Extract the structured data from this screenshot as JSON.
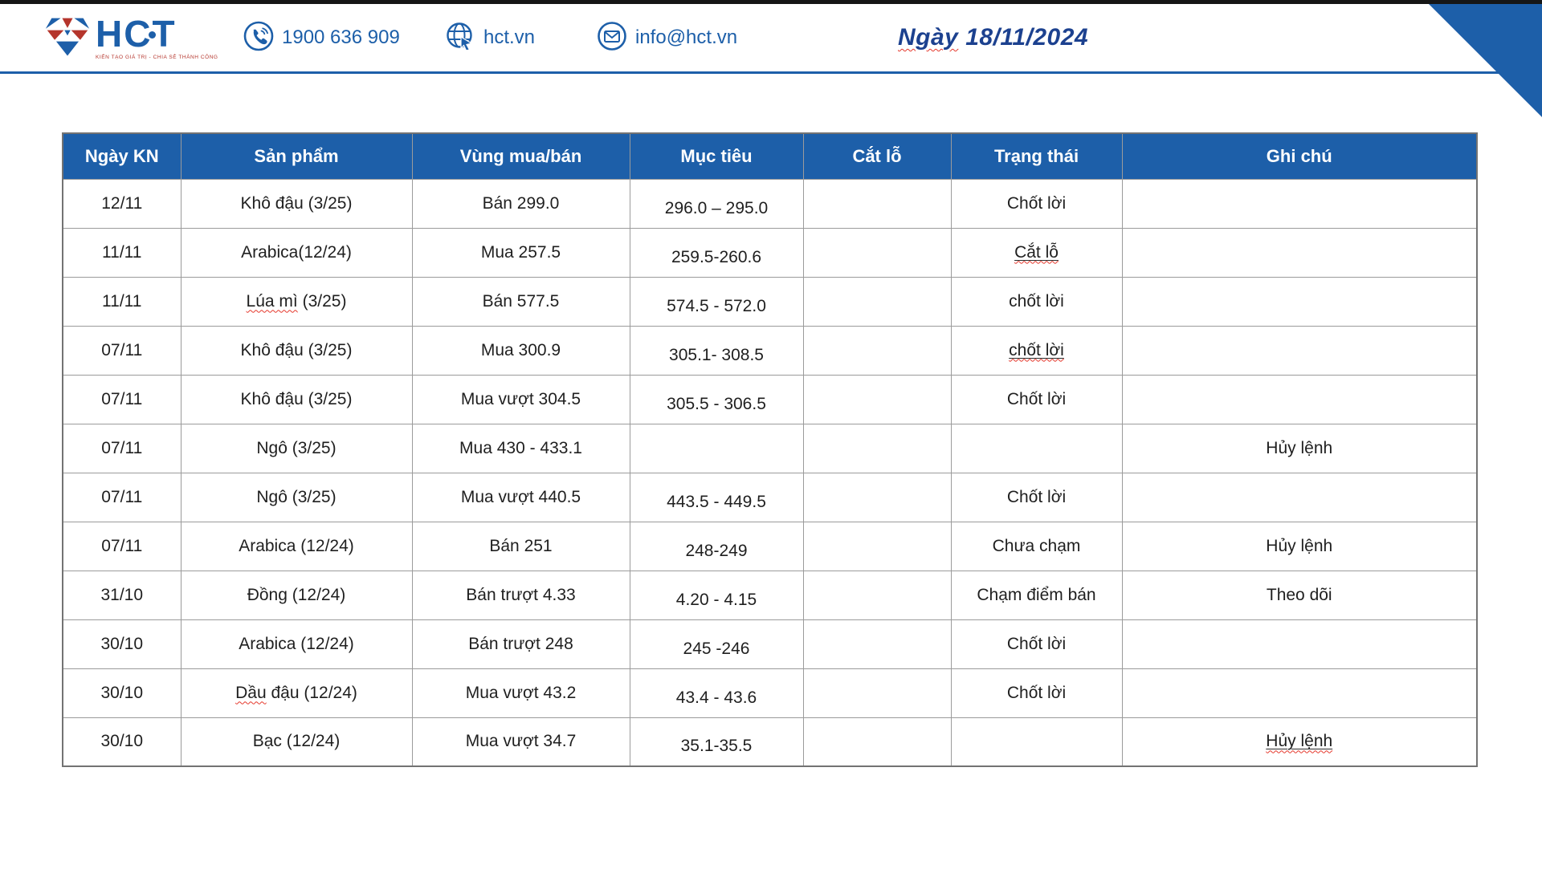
{
  "header": {
    "logo_word": "HCT",
    "logo_tagline": "KIẾN TẠO GIÁ TRỊ - CHIA SẺ THÀNH CÔNG",
    "phone": "1900 636 909",
    "website": "hct.vn",
    "email": "info@hct.vn",
    "date_word": "Ngày",
    "date_rest": " 18/11/2024"
  },
  "colors": {
    "brand_blue": "#1d5fa9",
    "date_navy": "#1c418f",
    "logo_red": "#b5352c",
    "spellcheck_red": "#e5372b",
    "table_border": "#9b9b9b"
  },
  "table": {
    "columns": [
      "Ngày KN",
      "Sản phẩm",
      "Vùng mua/bán",
      "Mục tiêu",
      "Cắt lỗ",
      "Trạng thái",
      "Ghi chú"
    ],
    "rows": [
      {
        "ngay_kn": "12/11",
        "san_pham": "Khô đậu (3/25)",
        "vung_mua_ban": "Bán 299.0",
        "muc_tieu": "296.0 – 295.0",
        "cat_lo": "",
        "trang_thai": "Chốt lời",
        "ghi_chu": ""
      },
      {
        "ngay_kn": "11/11",
        "san_pham": "Arabica(12/24)",
        "vung_mua_ban": "Mua 257.5",
        "muc_tieu": "259.5-260.6",
        "cat_lo": "",
        "trang_thai": "Cắt lỗ",
        "trang_thai_decor": "underline-wavy",
        "ghi_chu": ""
      },
      {
        "ngay_kn": "11/11",
        "san_pham": "Lúa mì (3/25)",
        "san_pham_wavy": "Lúa mì",
        "vung_mua_ban": "Bán 577.5",
        "muc_tieu": "574.5 - 572.0",
        "cat_lo": "",
        "trang_thai": "chốt lời",
        "ghi_chu": ""
      },
      {
        "ngay_kn": "07/11",
        "san_pham": "Khô đậu (3/25)",
        "vung_mua_ban": "Mua 300.9",
        "muc_tieu": "305.1- 308.5",
        "cat_lo": "",
        "trang_thai": "chốt lời",
        "trang_thai_decor": "underline-wavy",
        "ghi_chu": ""
      },
      {
        "ngay_kn": "07/11",
        "san_pham": "Khô đậu (3/25)",
        "vung_mua_ban": "Mua vượt 304.5",
        "muc_tieu": "305.5 - 306.5",
        "cat_lo": "",
        "trang_thai": "Chốt lời",
        "ghi_chu": ""
      },
      {
        "ngay_kn": "07/11",
        "san_pham": "Ngô (3/25)",
        "vung_mua_ban": "Mua 430 - 433.1",
        "muc_tieu": "",
        "cat_lo": "",
        "trang_thai": "",
        "ghi_chu": "Hủy lệnh"
      },
      {
        "ngay_kn": "07/11",
        "san_pham": "Ngô (3/25)",
        "vung_mua_ban": "Mua vượt 440.5",
        "muc_tieu": "443.5 - 449.5",
        "cat_lo": "",
        "trang_thai": "Chốt lời",
        "ghi_chu": ""
      },
      {
        "ngay_kn": "07/11",
        "san_pham": "Arabica (12/24)",
        "vung_mua_ban": "Bán 251",
        "muc_tieu": "248-249",
        "cat_lo": "",
        "trang_thai": "Chưa chạm",
        "ghi_chu": "Hủy lệnh"
      },
      {
        "ngay_kn": "31/10",
        "san_pham": "Đồng (12/24)",
        "vung_mua_ban": "Bán trượt 4.33",
        "muc_tieu": "4.20 - 4.15",
        "cat_lo": "",
        "trang_thai": "Chạm điểm bán",
        "ghi_chu": "Theo dõi"
      },
      {
        "ngay_kn": "30/10",
        "san_pham": "Arabica (12/24)",
        "vung_mua_ban": "Bán trượt 248",
        "muc_tieu": "245 -246",
        "cat_lo": "",
        "trang_thai": "Chốt lời",
        "ghi_chu": ""
      },
      {
        "ngay_kn": "30/10",
        "san_pham": "Dầu đậu (12/24)",
        "san_pham_wavy": "Dầu",
        "vung_mua_ban": "Mua vượt 43.2",
        "muc_tieu": "43.4 - 43.6",
        "cat_lo": "",
        "trang_thai": "Chốt lời",
        "ghi_chu": ""
      },
      {
        "ngay_kn": "30/10",
        "san_pham": "Bạc (12/24)",
        "vung_mua_ban": "Mua vượt 34.7",
        "muc_tieu": "35.1-35.5",
        "cat_lo": "",
        "trang_thai": "",
        "ghi_chu": "Hủy lệnh",
        "ghi_chu_decor": "underline-wavy"
      }
    ]
  }
}
